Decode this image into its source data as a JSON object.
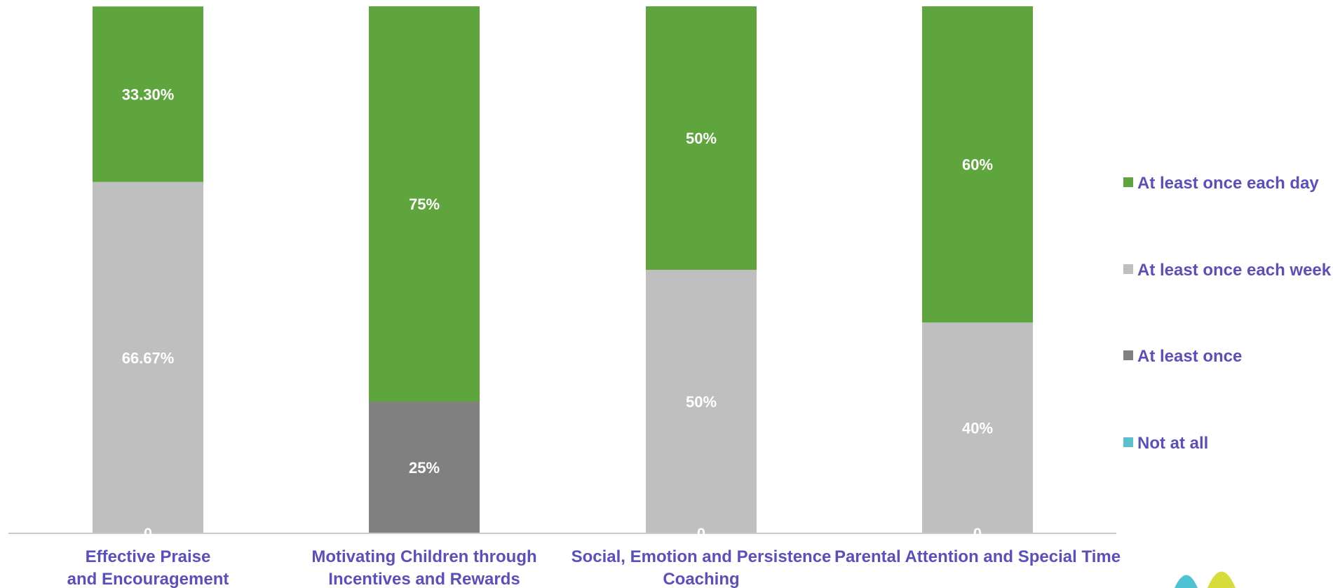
{
  "chart_data": {
    "type": "bar",
    "stacked": true,
    "categories": [
      "Effective Praise and Encouragement",
      "Motivating Children through Incentives and Rewards",
      "Social, Emotion and Persistence Coaching",
      "Parental Attention and Special Time"
    ],
    "series": [
      {
        "name": "Not at all",
        "color": "#5BC0CE",
        "values": [
          0,
          0,
          0,
          0
        ],
        "labels": [
          "0",
          "",
          "0",
          "0"
        ]
      },
      {
        "name": "At least once",
        "color": "#808080",
        "values": [
          0,
          25,
          0,
          0
        ],
        "labels": [
          "",
          "25%",
          "",
          ""
        ]
      },
      {
        "name": "At least once each week",
        "color": "#BFBFBF",
        "values": [
          66.67,
          0,
          50,
          40
        ],
        "labels": [
          "66.67%",
          "",
          "50%",
          "40%"
        ]
      },
      {
        "name": "At least once each day",
        "color": "#5DA53C",
        "values": [
          33.3,
          75,
          50,
          60
        ],
        "labels": [
          "33.30%",
          "75%",
          "50%",
          "60%"
        ]
      }
    ],
    "legend_order": [
      "At least once each day",
      "At least once each week",
      "At least once",
      "Not at all"
    ],
    "legend_position": "right",
    "ylim": [
      0,
      100
    ],
    "grid": false,
    "title": "",
    "xlabel": "",
    "ylabel": ""
  },
  "colors": {
    "label_text": "#5B4FBE",
    "axis": "#C8C8C8",
    "data_label": "#FFFFFF"
  }
}
